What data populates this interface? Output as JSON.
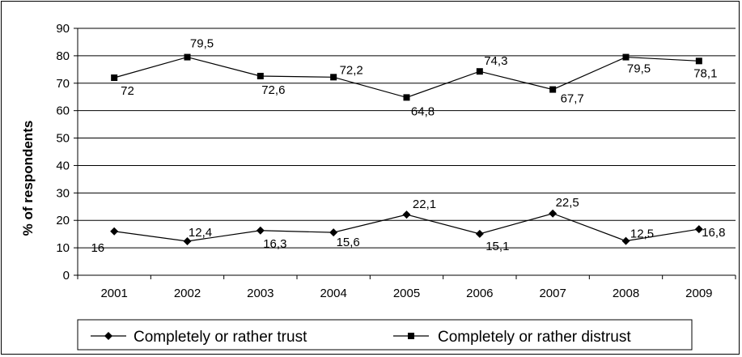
{
  "chart_data": {
    "type": "line",
    "title": "",
    "xlabel": "",
    "ylabel": "% of respondents",
    "ylim": [
      0,
      90
    ],
    "yticks": [
      0,
      10,
      20,
      30,
      40,
      50,
      60,
      70,
      80,
      90
    ],
    "grid": true,
    "legend_position": "bottom",
    "categories": [
      "2001",
      "2002",
      "2003",
      "2004",
      "2005",
      "2006",
      "2007",
      "2008",
      "2009"
    ],
    "series": [
      {
        "name": "Completely or rather trust",
        "marker": "diamond",
        "color": "#000000",
        "values": [
          16,
          12.4,
          16.3,
          15.6,
          22.1,
          15.1,
          22.5,
          12.5,
          16.8
        ],
        "labels": [
          "16",
          "12,4",
          "16,3",
          "15,6",
          "22,1",
          "15,1",
          "22,5",
          "12,5",
          "16,8"
        ]
      },
      {
        "name": "Completely or rather distrust",
        "marker": "square",
        "color": "#000000",
        "values": [
          72,
          79.5,
          72.6,
          72.2,
          64.8,
          74.3,
          67.7,
          79.5,
          78.1
        ],
        "labels": [
          "72",
          "79,5",
          "72,6",
          "72,2",
          "64,8",
          "74,3",
          "67,7",
          "79,5",
          "78,1"
        ]
      }
    ]
  }
}
